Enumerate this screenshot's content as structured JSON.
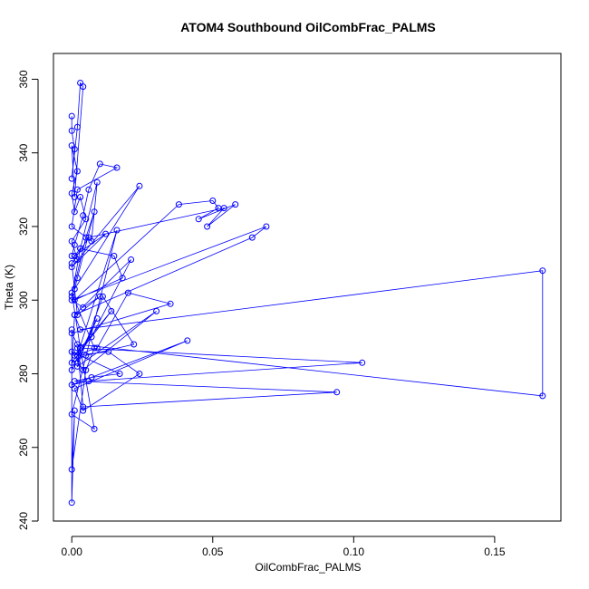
{
  "chart_data": {
    "type": "line",
    "title": "ATOM4 Southbound OilCombFrac_PALMS",
    "xlabel": "OilCombFrac_PALMS",
    "ylabel": "Theta (K)",
    "xlim": [
      -0.0065,
      0.1735
    ],
    "ylim": [
      240,
      367
    ],
    "x_ticks": [
      0.0,
      0.05,
      0.1,
      0.15
    ],
    "x_tick_labels": [
      "0.00",
      "0.05",
      "0.10",
      "0.15"
    ],
    "y_ticks": [
      240,
      260,
      280,
      300,
      320,
      340,
      360
    ],
    "y_tick_labels": [
      "240",
      "260",
      "280",
      "300",
      "320",
      "340",
      "360"
    ],
    "grid": false,
    "marker": "open-circle",
    "series": [
      {
        "color": "#0000ff",
        "x": [
          0.0,
          0.0,
          0.001,
          0.0,
          0.002,
          0.003,
          0.004,
          0.001,
          0.0,
          0.002,
          0.0,
          0.001,
          0.003,
          0.005,
          0.0,
          0.002,
          0.0,
          0.001,
          0.004,
          0.006,
          0.01,
          0.016,
          0.002,
          0.0,
          0.007,
          0.009,
          0.003,
          0.001,
          0.012,
          0.0,
          0.024,
          0.001,
          0.002,
          0.008,
          0.005,
          0.0,
          0.003,
          0.015,
          0.018,
          0.001,
          0.038,
          0.05,
          0.052,
          0.045,
          0.058,
          0.048,
          0.054,
          0.006,
          0.0,
          0.002,
          0.01,
          0.004,
          0.0,
          0.069,
          0.064,
          0.001,
          0.003,
          0.167,
          0.167,
          0.002,
          0.0,
          0.035,
          0.02,
          0.009,
          0.001,
          0.014,
          0.0,
          0.005,
          0.022,
          0.011,
          0.002,
          0.03,
          0.004,
          0.0,
          0.017,
          0.007,
          0.001,
          0.094,
          0.004,
          0.002,
          0.103,
          0.006,
          0.0,
          0.041,
          0.001,
          0.004,
          0.024,
          0.013,
          0.002,
          0.016,
          0.0,
          0.008,
          0.003,
          0.007,
          0.021,
          0.001,
          0.0,
          0.009,
          0.002,
          0.003,
          0.0,
          0.008,
          0.005,
          0.0,
          0.001,
          0.0,
          0.0
        ],
        "y": [
          350,
          346,
          341,
          333,
          347,
          359,
          358,
          328,
          342,
          335,
          329,
          324,
          328,
          322,
          316,
          311,
          312,
          315,
          323,
          330,
          337,
          336,
          330,
          320,
          316,
          332,
          314,
          312,
          318,
          309,
          331,
          303,
          306,
          324,
          317,
          301,
          314,
          312,
          306,
          300,
          326,
          327,
          325,
          322,
          326,
          320,
          325,
          317,
          310,
          296,
          301,
          298,
          300,
          320,
          317,
          296,
          292,
          308,
          274,
          288,
          291,
          299,
          302,
          287,
          285,
          297,
          283,
          285,
          288,
          301,
          282,
          297,
          281,
          286,
          280,
          279,
          278,
          275,
          271,
          287,
          283,
          278,
          277,
          289,
          276,
          270,
          280,
          286,
          285,
          319,
          269,
          265,
          287,
          290,
          311,
          296,
          281,
          295,
          283,
          287,
          302,
          287,
          281,
          254,
          270,
          245,
          292
        ]
      }
    ]
  }
}
